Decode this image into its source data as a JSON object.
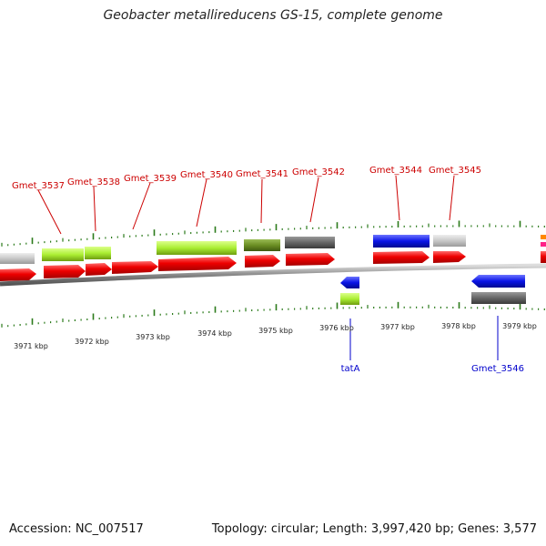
{
  "title": "Geobacter metallireducens GS-15, complete genome",
  "footer": {
    "accession": "Accession: NC_007517",
    "stats": "Topology: circular; Length: 3,997,420 bp; Genes: 3,577"
  },
  "colors": {
    "cds": "#ee0000",
    "lightgreen": "#aaee33",
    "olive": "#6b8e23",
    "darkgray": "#666666",
    "lightgray": "#c8c8c8",
    "blue": "#0a14e6",
    "tick": "#2a7a1a",
    "gene_label": "#cc0000",
    "reverse_label": "#0000cc"
  },
  "ruler_labels": [
    "3971 kbp",
    "3972 kbp",
    "3973 kbp",
    "3974 kbp",
    "3975 kbp",
    "3976 kbp",
    "3977 kbp",
    "3978 kbp",
    "3979 kbp"
  ],
  "gene_labels": [
    "Gmet_3537",
    "Gmet_3538",
    "Gmet_3539",
    "Gmet_3540",
    "Gmet_3541",
    "Gmet_3542",
    "Gmet_3544",
    "Gmet_3545"
  ],
  "reverse_labels": [
    "tatA",
    "Gmet_3546"
  ]
}
